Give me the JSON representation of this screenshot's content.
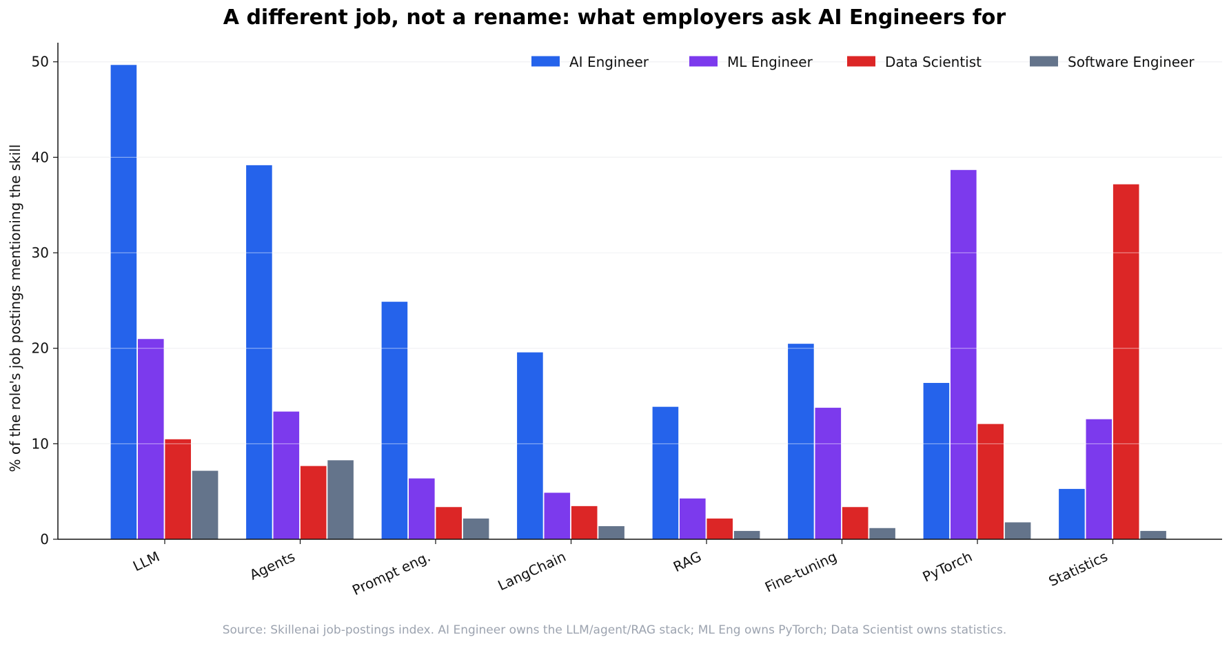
{
  "chart_data": {
    "type": "bar",
    "title": "A different job, not a rename: what employers ask AI Engineers for",
    "ylabel": "% of the role's job postings mentioning the skill",
    "xlabel": "",
    "categories": [
      "LLM",
      "Agents",
      "Prompt eng.",
      "LangChain",
      "RAG",
      "Fine-tuning",
      "PyTorch",
      "Statistics"
    ],
    "ylim": [
      0,
      52
    ],
    "yticks": [
      0,
      10,
      20,
      30,
      40,
      50
    ],
    "grid": "horizontal",
    "legend_position": "top-right",
    "series": [
      {
        "name": "AI Engineer",
        "color": "#2563eb",
        "values": [
          49.7,
          39.2,
          24.9,
          19.6,
          13.9,
          20.5,
          16.4,
          5.3
        ]
      },
      {
        "name": "ML Engineer",
        "color": "#7c3aed",
        "values": [
          21.0,
          13.4,
          6.4,
          4.9,
          4.3,
          13.8,
          38.7,
          12.6
        ]
      },
      {
        "name": "Data Scientist",
        "color": "#dc2626",
        "values": [
          10.5,
          7.7,
          3.4,
          3.5,
          2.2,
          3.4,
          12.1,
          37.2
        ]
      },
      {
        "name": "Software Engineer",
        "color": "#64748b",
        "values": [
          7.2,
          8.3,
          2.2,
          1.4,
          0.9,
          1.2,
          1.8,
          0.9
        ]
      }
    ]
  },
  "source_note": "Source: Skillenai job-postings index. AI Engineer owns the LLM/agent/RAG stack; ML Eng owns PyTorch; Data Scientist owns statistics."
}
